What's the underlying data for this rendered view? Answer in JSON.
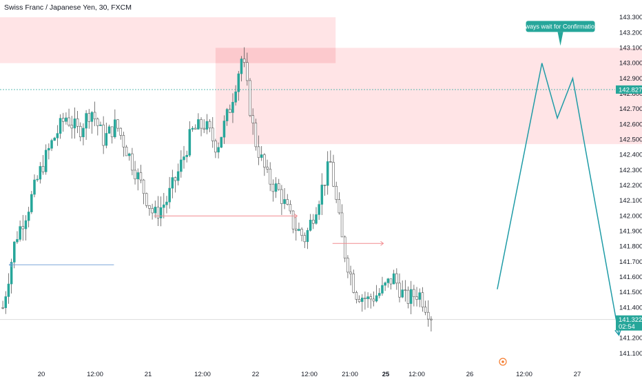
{
  "header": {
    "title": "Swiss Franc / Japanese Yen, 30, FXCM"
  },
  "colors": {
    "up": "#26a69a",
    "down": "#ffffff",
    "wick": "#555555",
    "zone": "#ffe1e3",
    "zone_overlap": "#fcc9cd",
    "projection": "#1e9ba6",
    "arrow_red": "#f28b8f",
    "arrow_blue": "#7aa6d9",
    "tag": "#26a69a",
    "note_bg": "#26a69a",
    "event": "#f57c2e"
  },
  "chart_data": {
    "type": "candlestick",
    "symbol": "CHF/JPY",
    "timeframe": "30",
    "ylim": [
      141.05,
      143.35
    ],
    "y_ticks": [
      143.3,
      143.2,
      143.1,
      143.0,
      142.9,
      142.8,
      142.7,
      142.6,
      142.5,
      142.4,
      142.3,
      142.2,
      142.1,
      142.0,
      141.9,
      141.8,
      141.7,
      141.6,
      141.5,
      141.4,
      141.3,
      141.2,
      141.1
    ],
    "y_tick_labels": [
      "143.300",
      "143.200",
      "143.100",
      "143.000",
      "142.900",
      "142.800",
      "142.700",
      "142.600",
      "142.500",
      "142.400",
      "142.300",
      "142.200",
      "142.100",
      "142.000",
      "141.900",
      "141.800",
      "141.700",
      "141.600",
      "141.500",
      "141.400",
      "141.300",
      "141.200",
      "141.100"
    ],
    "x_labels": [
      "20",
      "12:00",
      "21",
      "12:00",
      "22",
      "12:00",
      "21:00",
      "25",
      "12:00",
      "26",
      "12:00",
      "27"
    ],
    "x_label_bold": [
      false,
      false,
      false,
      false,
      false,
      false,
      false,
      true,
      false,
      false,
      false,
      false
    ],
    "close_path": [
      141.4,
      141.85,
      142.05,
      142.3,
      142.5,
      142.65,
      142.55,
      142.7,
      142.5,
      142.6,
      142.4,
      142.2,
      142.0,
      142.1,
      142.3,
      142.55,
      142.6,
      142.45,
      142.7,
      143.05,
      142.5,
      142.25,
      142.15,
      141.95,
      141.85,
      142.1,
      142.35,
      141.8,
      141.5,
      141.45,
      141.5,
      141.6,
      141.45,
      141.5,
      141.35
    ],
    "candle_samples": 150,
    "current_price": 141.322,
    "current_price_label": "141.322",
    "countdown": "02:54",
    "marked_level": 142.827,
    "marked_level_label": "142.827",
    "zones": [
      {
        "x_start": 0,
        "x_end": 1090,
        "y_low": 143.0,
        "y_high": 143.3
      },
      {
        "x_start": 700,
        "x_end": 2300,
        "y_low": 142.47,
        "y_high": 143.1
      }
    ],
    "projection": [
      {
        "x": 1615,
        "y": 141.52
      },
      {
        "x": 1760,
        "y": 143.0
      },
      {
        "x": 1810,
        "y": 142.64
      },
      {
        "x": 1860,
        "y": 142.9
      },
      {
        "x": 2010,
        "y": 141.22
      }
    ],
    "annotation": {
      "text": "Always wait for Confirmations",
      "x": 1820,
      "y": 143.24
    },
    "arrows": [
      {
        "x1": 500,
        "x2": 965,
        "y": 142.0,
        "color": "arrow_red"
      },
      {
        "x1": 1080,
        "x2": 1245,
        "y": 141.82,
        "color": "arrow_red"
      },
      {
        "x1": 370,
        "x2": 30,
        "y": 141.68,
        "color": "arrow_blue"
      }
    ]
  }
}
